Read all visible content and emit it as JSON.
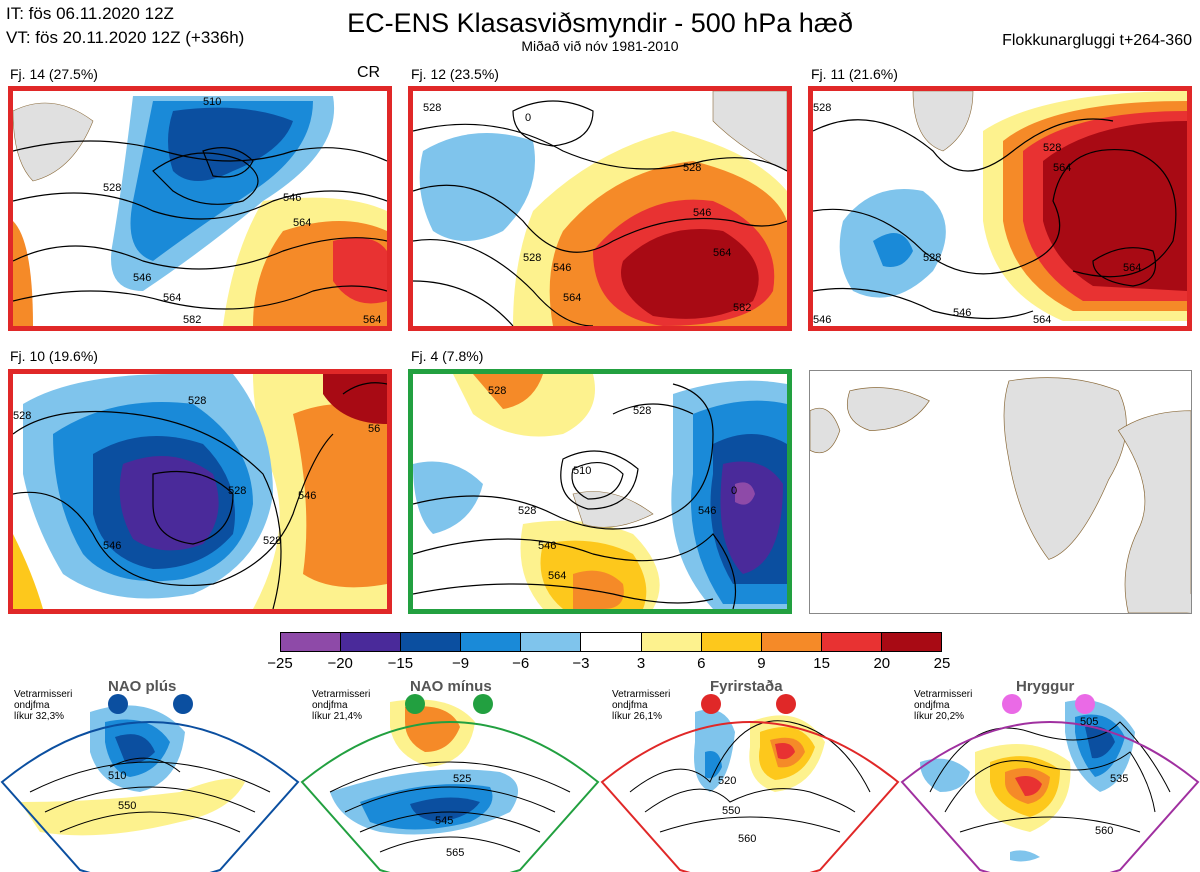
{
  "header": {
    "it": "IT: fös 06.11.2020 12Z",
    "vt": "VT: fös 20.11.2020 12Z  (+336h)",
    "title": "EC-ENS Klasasviðsmyndir - 500 hPa hæð",
    "subtitle": "Miðað við nóv 1981-2010",
    "window": "Flokkunargluggi t+264-360"
  },
  "panels": [
    {
      "label": "Fj. 14 (27.5%)",
      "tag": "CR",
      "border": "#e02828",
      "contours": [
        "510",
        "528",
        "546",
        "564",
        "546",
        "564",
        "582",
        "564"
      ]
    },
    {
      "label": "Fj. 12 (23.5%)",
      "border": "#e02828",
      "contours": [
        "528",
        "0",
        "528",
        "546",
        "564",
        "528",
        "546",
        "564",
        "582"
      ]
    },
    {
      "label": "Fj. 11 (21.6%)",
      "border": "#e02828",
      "contours": [
        "528",
        "528",
        "564",
        "528",
        "564",
        "546",
        "564",
        "546"
      ]
    },
    {
      "label": "Fj. 10 (19.6%)",
      "border": "#e02828",
      "contours": [
        "528",
        "528",
        "528",
        "546",
        "528",
        "546",
        "56"
      ]
    },
    {
      "label": "Fj. 4 (7.8%)",
      "border": "#22a040",
      "contours": [
        "528",
        "528",
        "510",
        "528",
        "546",
        "564",
        "546",
        "0"
      ]
    }
  ],
  "colorbar": {
    "colors": [
      "#8e4aa8",
      "#4a2a9a",
      "#0b4fa0",
      "#1a8ad8",
      "#7fc4ec",
      "#ffffff",
      "#fdf28e",
      "#fdc81c",
      "#f58a28",
      "#e83232",
      "#a80a14"
    ],
    "ticks": [
      "−25",
      "−20",
      "−15",
      "−9",
      "−6",
      "−3",
      "3",
      "6",
      "9",
      "15",
      "20",
      "25"
    ]
  },
  "regimes": [
    {
      "name": "NAO plús",
      "note": [
        "Vetrarmisseri",
        "ondjfma",
        "líkur 32,3%"
      ],
      "color": "#0b4fa0",
      "contours": [
        "510",
        "550"
      ]
    },
    {
      "name": "NAO mínus",
      "note": [
        "Vetrarmisseri",
        "ondjfma",
        "líkur 21,4%"
      ],
      "color": "#22a040",
      "contours": [
        "525",
        "545",
        "565"
      ]
    },
    {
      "name": "Fyrirstaða",
      "note": [
        "Vetrarmisseri",
        "ondjfma",
        "líkur 26,1%"
      ],
      "color": "#e02828",
      "contours": [
        "520",
        "550",
        "560"
      ]
    },
    {
      "name": "Hryggur",
      "note": [
        "Vetrarmisseri",
        "ondjfma",
        "líkur 20,2%"
      ],
      "color": "#a030a0",
      "contours": [
        "505",
        "535",
        "560"
      ]
    }
  ]
}
